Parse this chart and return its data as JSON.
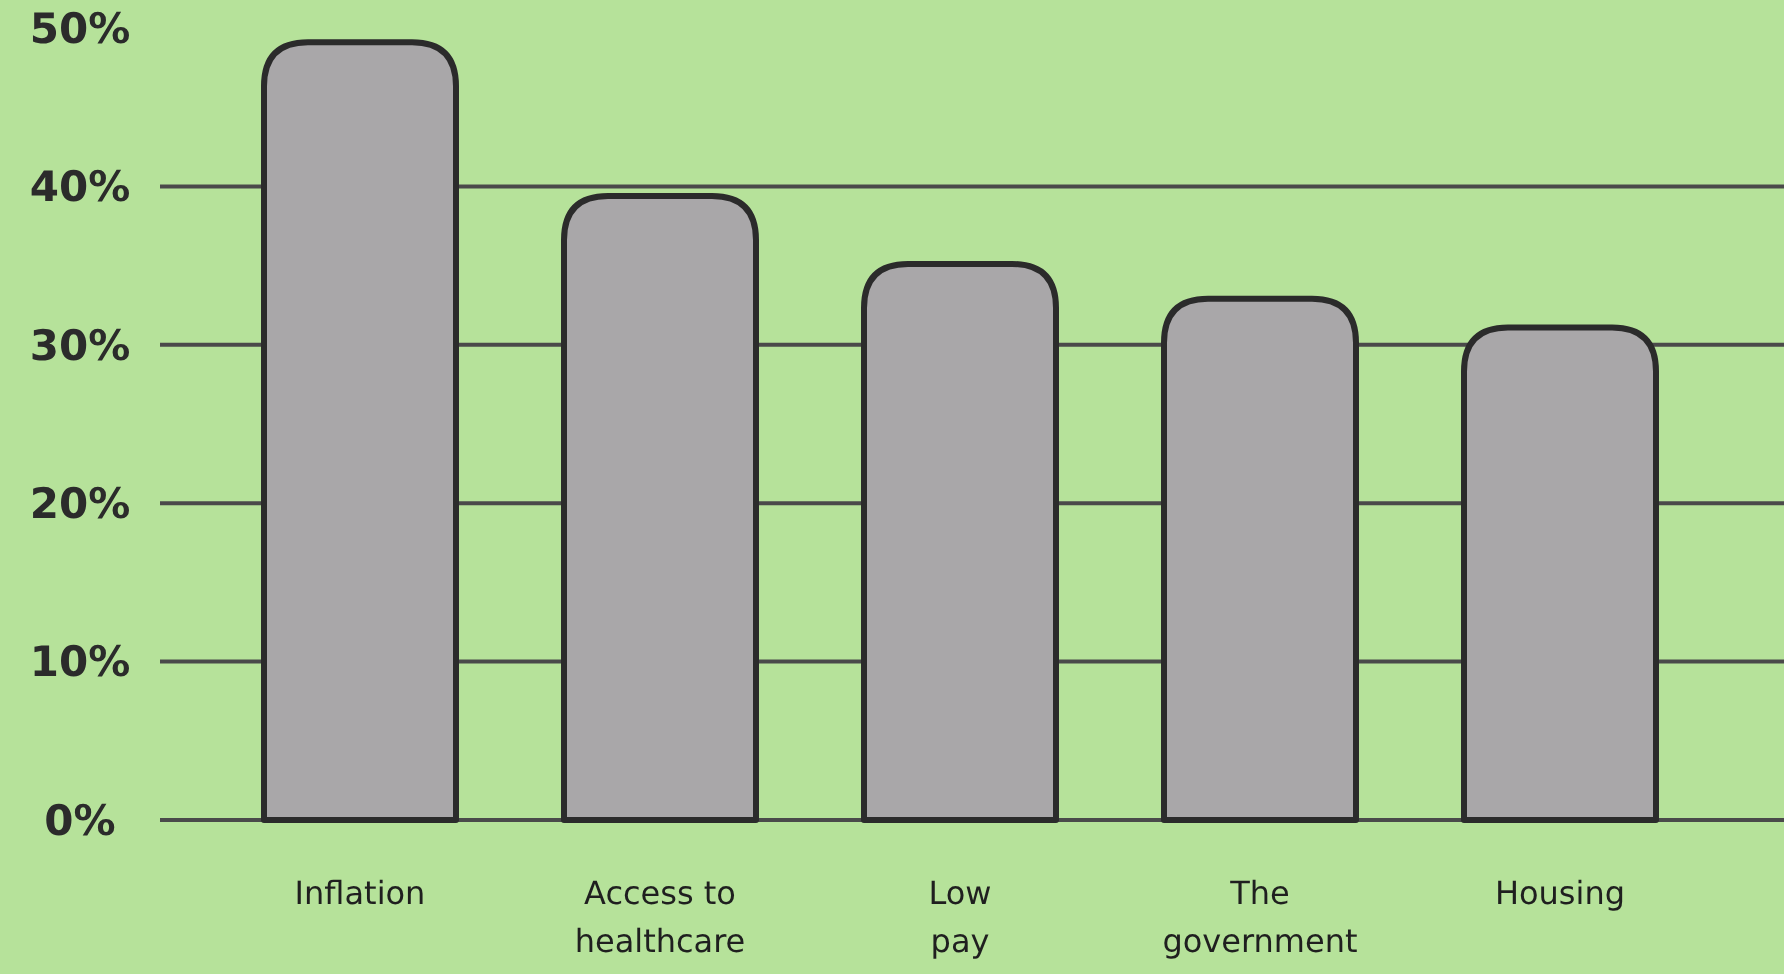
{
  "chart_data": {
    "type": "bar",
    "categories": [
      "Inflation",
      "Access to\nhealthcare",
      "Low\npay",
      "The\ngovernment",
      "Housing"
    ],
    "values": [
      49.1,
      39.4,
      35.1,
      32.9,
      31.1
    ],
    "color": "#a9a7a9",
    "ylim": [
      0,
      50
    ],
    "yticks": [
      {
        "value": 0,
        "label": "0%"
      },
      {
        "value": 10,
        "label": "10%"
      },
      {
        "value": 20,
        "label": "20%"
      },
      {
        "value": 30,
        "label": "30%"
      },
      {
        "value": 40,
        "label": "40%"
      },
      {
        "value": 50,
        "label": "50%"
      }
    ],
    "grid": "y"
  }
}
